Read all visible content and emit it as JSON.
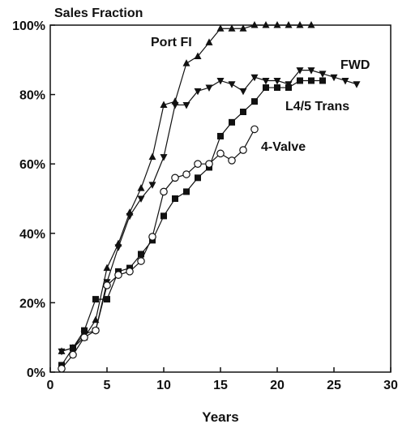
{
  "chart_data": {
    "type": "line",
    "title": "Sales Fraction",
    "xlabel": "Years",
    "ylabel": "",
    "xlim": [
      0,
      30
    ],
    "ylim": [
      0,
      100
    ],
    "x_ticks": [
      0,
      5,
      10,
      15,
      20,
      25,
      30
    ],
    "y_ticks": [
      0,
      20,
      40,
      60,
      80,
      100
    ],
    "y_tick_labels": [
      "0%",
      "20%",
      "40%",
      "60%",
      "80%",
      "100%"
    ],
    "grid": false,
    "legend": "inline labels near series",
    "series": [
      {
        "name": "Port FI",
        "marker": "triangle-up",
        "x": [
          1,
          2,
          3,
          4,
          5,
          6,
          7,
          8,
          9,
          10,
          11,
          12,
          13,
          14,
          15,
          16,
          17,
          18,
          19,
          20,
          21,
          22,
          23
        ],
        "y": [
          6,
          7,
          10,
          15,
          30,
          37,
          46,
          53,
          62,
          77,
          78,
          89,
          91,
          95,
          99,
          99,
          99,
          100,
          100,
          100,
          100,
          100,
          100
        ]
      },
      {
        "name": "FWD",
        "marker": "triangle-down",
        "x": [
          1,
          2,
          3,
          4,
          5,
          6,
          7,
          8,
          9,
          10,
          11,
          12,
          13,
          14,
          15,
          16,
          17,
          18,
          19,
          20,
          21,
          22,
          23,
          24,
          25,
          26,
          27
        ],
        "y": [
          6,
          7,
          11,
          12,
          26,
          36,
          45,
          50,
          54,
          62,
          77,
          77,
          81,
          82,
          84,
          83,
          81,
          85,
          84,
          84,
          83,
          87,
          87,
          86,
          85,
          84,
          83
        ]
      },
      {
        "name": "L4/5 Trans",
        "marker": "square",
        "x": [
          1,
          2,
          3,
          4,
          5,
          6,
          7,
          8,
          9,
          10,
          11,
          12,
          13,
          14,
          15,
          16,
          17,
          18,
          19,
          20,
          21,
          22,
          23,
          24
        ],
        "y": [
          2,
          7,
          12,
          21,
          21,
          29,
          30,
          34,
          38,
          45,
          50,
          52,
          56,
          59,
          68,
          72,
          75,
          78,
          82,
          82,
          82,
          84,
          84,
          84
        ]
      },
      {
        "name": "4-Valve",
        "marker": "circle-open",
        "x": [
          1,
          2,
          3,
          4,
          5,
          6,
          7,
          8,
          9,
          10,
          11,
          12,
          13,
          14,
          15,
          16,
          17,
          18
        ],
        "y": [
          1,
          5,
          10,
          12,
          25,
          28,
          29,
          32,
          39,
          52,
          56,
          57,
          60,
          60,
          63,
          61,
          64,
          70
        ]
      }
    ],
    "annotations": [
      {
        "text": "Port FI",
        "series": "Port FI"
      },
      {
        "text": "FWD",
        "series": "FWD"
      },
      {
        "text": "L4/5 Trans",
        "series": "L4/5 Trans"
      },
      {
        "text": "4-Valve",
        "series": "4-Valve"
      }
    ]
  }
}
